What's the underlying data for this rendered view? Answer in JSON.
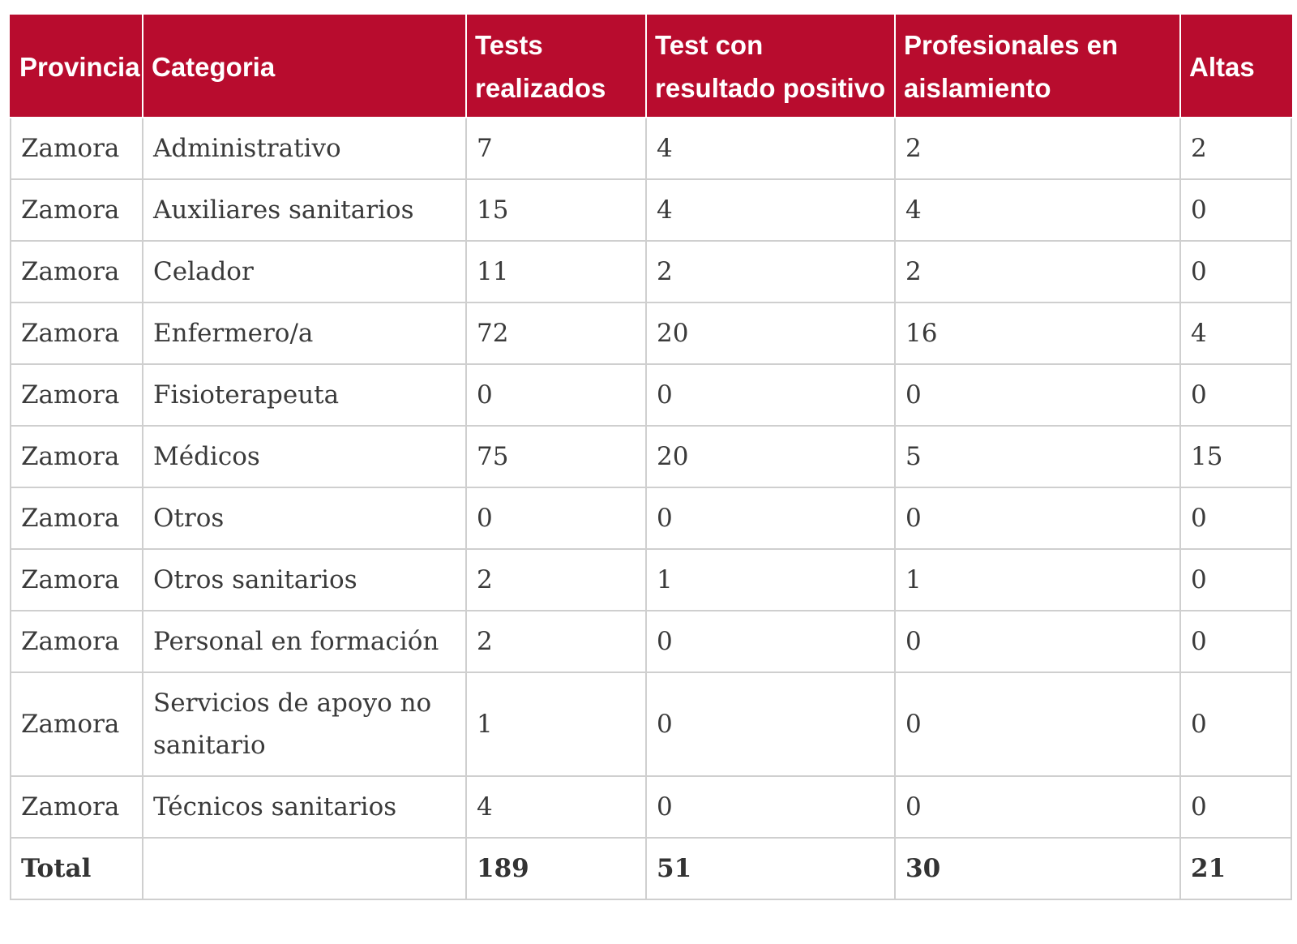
{
  "table": {
    "headers": [
      "Provincia",
      "Categoria",
      "Tests realizados",
      "Test con resultado positivo",
      "Profesionales en aislamiento",
      "Altas"
    ],
    "rows": [
      {
        "provincia": "Zamora",
        "categoria": "Administrativo",
        "tests": "7",
        "positivos": "4",
        "aislamiento": "2",
        "altas": "2"
      },
      {
        "provincia": "Zamora",
        "categoria": "Auxiliares sanitarios",
        "tests": "15",
        "positivos": "4",
        "aislamiento": "4",
        "altas": "0"
      },
      {
        "provincia": "Zamora",
        "categoria": "Celador",
        "tests": "11",
        "positivos": "2",
        "aislamiento": "2",
        "altas": "0"
      },
      {
        "provincia": "Zamora",
        "categoria": "Enfermero/a",
        "tests": "72",
        "positivos": "20",
        "aislamiento": "16",
        "altas": "4"
      },
      {
        "provincia": "Zamora",
        "categoria": "Fisioterapeuta",
        "tests": "0",
        "positivos": "0",
        "aislamiento": "0",
        "altas": "0"
      },
      {
        "provincia": "Zamora",
        "categoria": "Médicos",
        "tests": "75",
        "positivos": "20",
        "aislamiento": "5",
        "altas": "15"
      },
      {
        "provincia": "Zamora",
        "categoria": "Otros",
        "tests": "0",
        "positivos": "0",
        "aislamiento": "0",
        "altas": "0"
      },
      {
        "provincia": "Zamora",
        "categoria": "Otros sanitarios",
        "tests": "2",
        "positivos": "1",
        "aislamiento": "1",
        "altas": "0"
      },
      {
        "provincia": "Zamora",
        "categoria": "Personal en formación",
        "tests": "2",
        "positivos": "0",
        "aislamiento": "0",
        "altas": "0"
      },
      {
        "provincia": "Zamora",
        "categoria": "Servicios de apoyo no sanitario",
        "tests": "1",
        "positivos": "0",
        "aislamiento": "0",
        "altas": "0"
      },
      {
        "provincia": "Zamora",
        "categoria": "Técnicos sanitarios",
        "tests": "4",
        "positivos": "0",
        "aislamiento": "0",
        "altas": "0"
      }
    ],
    "total": {
      "label": "Total",
      "categoria": "",
      "tests": "189",
      "positivos": "51",
      "aislamiento": "30",
      "altas": "21"
    }
  }
}
